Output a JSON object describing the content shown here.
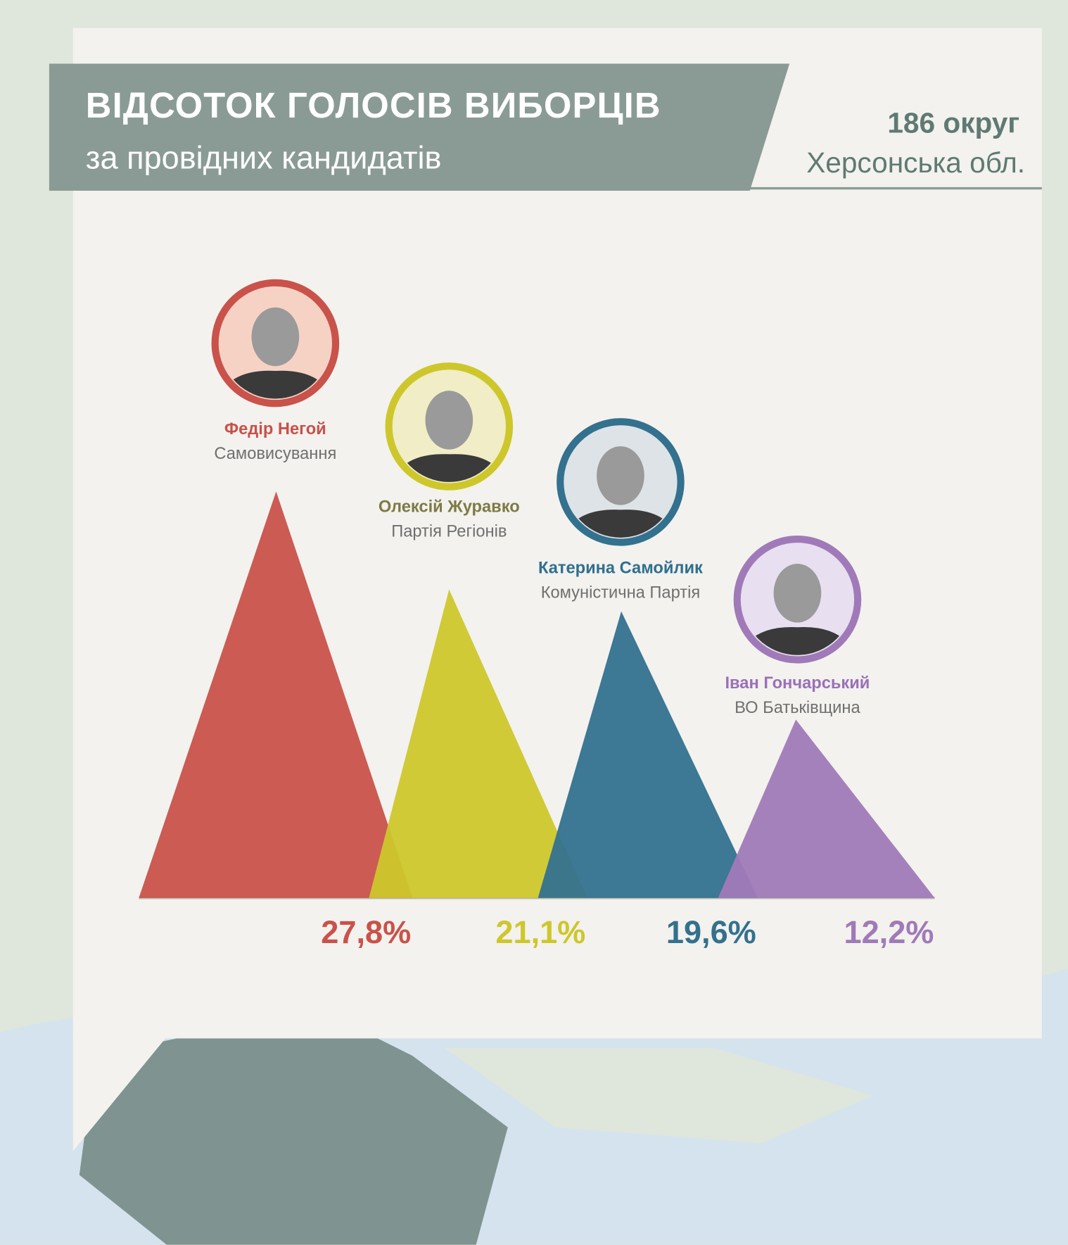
{
  "chart_data": {
    "type": "triangle",
    "title": "ВІДСОТОК ГОЛОСІВ ВИБОРЦІВ",
    "subtitle": "за провідних кандидатів",
    "district": "186 округ",
    "region": "Херсонська обл.",
    "categories": [
      "Федір Негой",
      "Олексій Журавко",
      "Катерина Самойлик",
      "Іван Гончарський"
    ],
    "parties": [
      "Самовисування",
      "Партія Регіонів",
      "Комуністична Партія",
      "ВО Батьківщина"
    ],
    "values": [
      27.8,
      21.1,
      19.6,
      12.2
    ],
    "value_labels": [
      "27,8%",
      "21,1%",
      "19,6%",
      "12,2%"
    ],
    "colors": [
      "#c9524a",
      "#cdc72c",
      "#33718e",
      "#a07ab8"
    ]
  }
}
